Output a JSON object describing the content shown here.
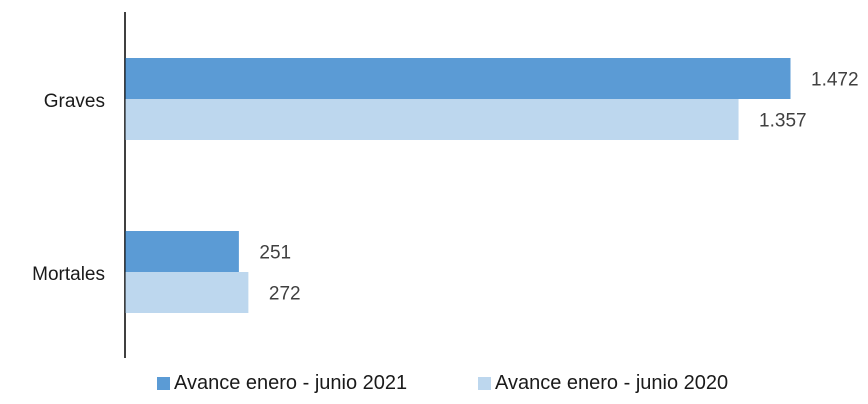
{
  "chart_data": {
    "type": "bar",
    "orientation": "horizontal",
    "categories": [
      "Graves",
      "Mortales"
    ],
    "series": [
      {
        "name": "Avance enero - junio 2021",
        "values": [
          1472,
          251
        ],
        "labels": [
          "1.472",
          "251"
        ],
        "color": "#5b9bd5"
      },
      {
        "name": "Avance enero - junio 2020",
        "values": [
          1357,
          272
        ],
        "labels": [
          "1.357",
          "272"
        ],
        "color": "#bdd7ee"
      }
    ],
    "title": "",
    "xlabel": "",
    "ylabel": "",
    "xlim": [
      0,
      1472
    ],
    "grid": false,
    "legend_position": "bottom"
  }
}
